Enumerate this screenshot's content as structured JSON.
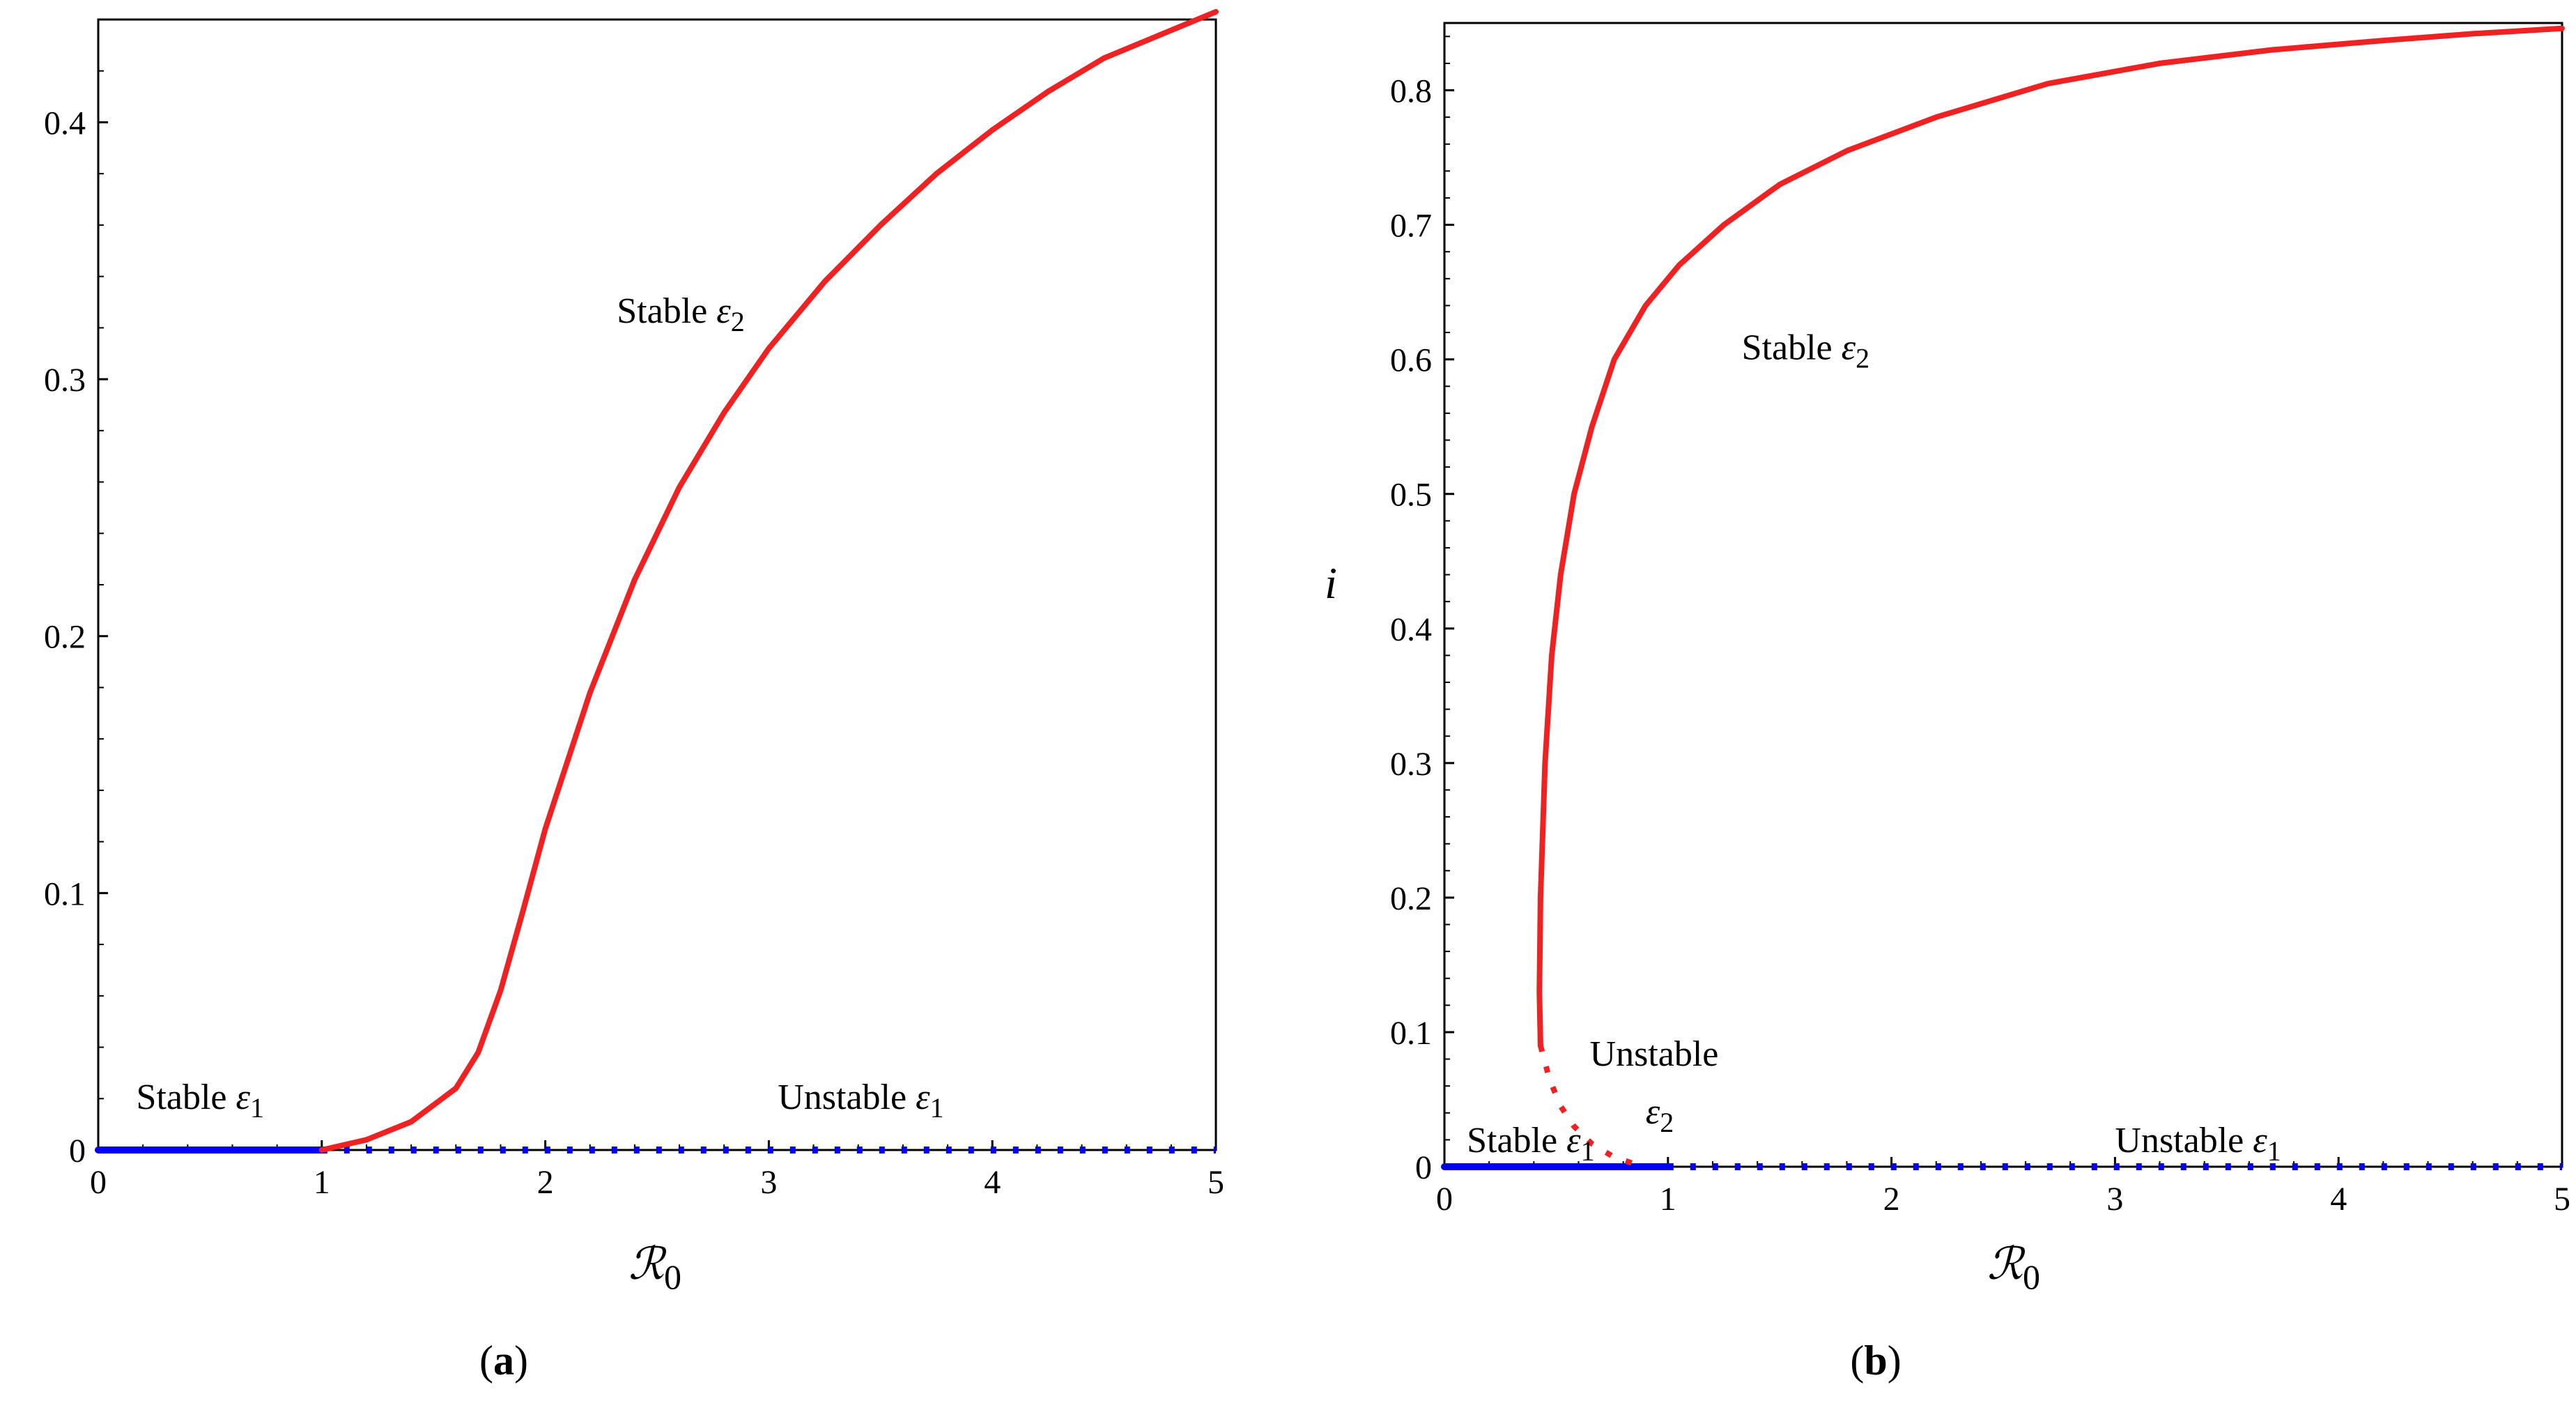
{
  "chart_data": [
    {
      "type": "line",
      "panel_label": {
        "open": "(",
        "letter": "a",
        "close": ")"
      },
      "xlabel": {
        "main": "ℛ",
        "sub": "0"
      },
      "ylabel": "",
      "xlim": [
        0,
        5
      ],
      "ylim": [
        0,
        0.44
      ],
      "xticks": [
        {
          "value": 0,
          "label": "0"
        },
        {
          "value": 1,
          "label": "1"
        },
        {
          "value": 2,
          "label": "2"
        },
        {
          "value": 3,
          "label": "3"
        },
        {
          "value": 4,
          "label": "4"
        },
        {
          "value": 5,
          "label": "5"
        }
      ],
      "yticks": [
        {
          "value": 0,
          "label": "0"
        },
        {
          "value": 0.1,
          "label": "0.1"
        },
        {
          "value": 0.2,
          "label": "0.2"
        },
        {
          "value": 0.3,
          "label": "0.3"
        },
        {
          "value": 0.4,
          "label": "0.4"
        }
      ],
      "grid": false,
      "series": [
        {
          "name": "Stable ε1",
          "color": "#0000ee",
          "style": "solid",
          "x": [
            0,
            1
          ],
          "y": [
            0,
            0
          ]
        },
        {
          "name": "Unstable ε1",
          "color": "#0000ee",
          "style": "dotted",
          "x": [
            1,
            5
          ],
          "y": [
            0,
            0
          ]
        },
        {
          "name": "Stable ε2",
          "color": "#ee2222",
          "style": "solid",
          "x": [
            1.0,
            1.2,
            1.4,
            1.6,
            1.7,
            1.8,
            1.9,
            2.0,
            2.2,
            2.4,
            2.6,
            2.8,
            3.0,
            3.25,
            3.5,
            3.75,
            4.0,
            4.25,
            4.5,
            4.75,
            5.0
          ],
          "y": [
            0.0,
            0.004,
            0.011,
            0.024,
            0.038,
            0.062,
            0.093,
            0.125,
            0.178,
            0.222,
            0.258,
            0.287,
            0.312,
            0.338,
            0.36,
            0.38,
            0.397,
            0.412,
            0.425,
            0.434,
            0.443
          ]
        }
      ],
      "annotations": [
        {
          "prefix": "Stable ",
          "symbol": "ε",
          "sub": "2",
          "x": 2.32,
          "y": 0.322
        },
        {
          "prefix": "Stable ",
          "symbol": "ε",
          "sub": "1",
          "x": 0.17,
          "y": 0.016
        },
        {
          "prefix": "Unstable ",
          "symbol": "ε",
          "sub": "1",
          "x": 3.04,
          "y": 0.016
        }
      ]
    },
    {
      "type": "line",
      "panel_label": {
        "open": "(",
        "letter": "b",
        "close": ")"
      },
      "xlabel": {
        "main": "ℛ",
        "sub": "0"
      },
      "ylabel": "i",
      "xlim": [
        0,
        5
      ],
      "ylim": [
        0,
        0.85
      ],
      "xticks": [
        {
          "value": 0,
          "label": "0"
        },
        {
          "value": 1,
          "label": "1"
        },
        {
          "value": 2,
          "label": "2"
        },
        {
          "value": 3,
          "label": "3"
        },
        {
          "value": 4,
          "label": "4"
        },
        {
          "value": 5,
          "label": "5"
        }
      ],
      "yticks": [
        {
          "value": 0,
          "label": "0"
        },
        {
          "value": 0.1,
          "label": "0.1"
        },
        {
          "value": 0.2,
          "label": "0.2"
        },
        {
          "value": 0.3,
          "label": "0.3"
        },
        {
          "value": 0.4,
          "label": "0.4"
        },
        {
          "value": 0.5,
          "label": "0.5"
        },
        {
          "value": 0.6,
          "label": "0.6"
        },
        {
          "value": 0.7,
          "label": "0.7"
        },
        {
          "value": 0.8,
          "label": "0.8"
        }
      ],
      "grid": false,
      "series": [
        {
          "name": "Stable ε1",
          "color": "#0000ee",
          "style": "solid",
          "x": [
            0,
            1
          ],
          "y": [
            0,
            0
          ]
        },
        {
          "name": "Unstable ε1",
          "color": "#0000ee",
          "style": "dotted",
          "x": [
            1,
            5
          ],
          "y": [
            0,
            0
          ]
        },
        {
          "name": "Unstable ε2",
          "color": "#ee2222",
          "style": "dotted",
          "x": [
            0.43,
            0.47,
            0.52,
            0.58,
            0.66,
            0.75,
            0.85
          ],
          "y": [
            0.09,
            0.065,
            0.045,
            0.03,
            0.017,
            0.008,
            0.002
          ]
        },
        {
          "name": "Stable ε2",
          "color": "#ee2222",
          "style": "solid",
          "x": [
            0.43,
            0.425,
            0.43,
            0.45,
            0.48,
            0.52,
            0.58,
            0.66,
            0.76,
            0.9,
            1.05,
            1.25,
            1.5,
            1.8,
            2.2,
            2.7,
            3.2,
            3.7,
            4.2,
            4.6,
            5.0
          ],
          "y": [
            0.09,
            0.13,
            0.2,
            0.3,
            0.38,
            0.44,
            0.5,
            0.55,
            0.6,
            0.64,
            0.67,
            0.7,
            0.73,
            0.755,
            0.78,
            0.805,
            0.82,
            0.83,
            0.837,
            0.842,
            0.846
          ]
        }
      ],
      "annotations": [
        {
          "prefix": "Stable ",
          "symbol": "ε",
          "sub": "2",
          "x": 1.33,
          "y": 0.6
        },
        {
          "prefix": "Unstable",
          "symbol": "",
          "sub": "",
          "x": 0.65,
          "y": 0.075
        },
        {
          "prefix": "",
          "symbol": "ε",
          "sub": "2",
          "x": 0.9,
          "y": 0.032
        },
        {
          "prefix": "Stable ",
          "symbol": "ε",
          "sub": "1",
          "x": 0.1,
          "y": 0.011
        },
        {
          "prefix": "Unstable ",
          "symbol": "ε",
          "sub": "1",
          "x": 3.0,
          "y": 0.011
        }
      ]
    }
  ]
}
